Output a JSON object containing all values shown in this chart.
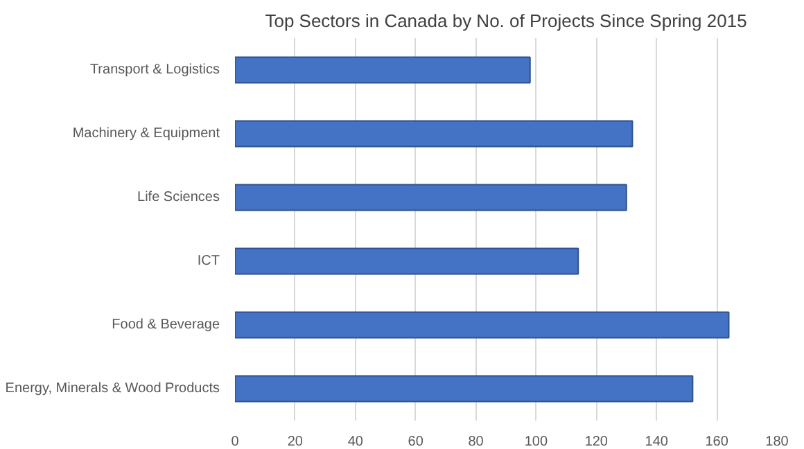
{
  "chart_data": {
    "type": "bar",
    "orientation": "horizontal",
    "title": "Top Sectors in Canada by No. of Projects Since Spring 2015",
    "categories": [
      "Transport & Logistics",
      "Machinery & Equipment",
      "Life Sciences",
      "ICT",
      "Food & Beverage",
      "Energy, Minerals & Wood Products"
    ],
    "values": [
      98,
      132,
      130,
      114,
      164,
      152
    ],
    "color": "#4472c4",
    "xlim": [
      0,
      180
    ],
    "xticks": [
      0,
      20,
      40,
      60,
      80,
      100,
      120,
      140,
      160,
      180
    ],
    "grid": "x"
  }
}
